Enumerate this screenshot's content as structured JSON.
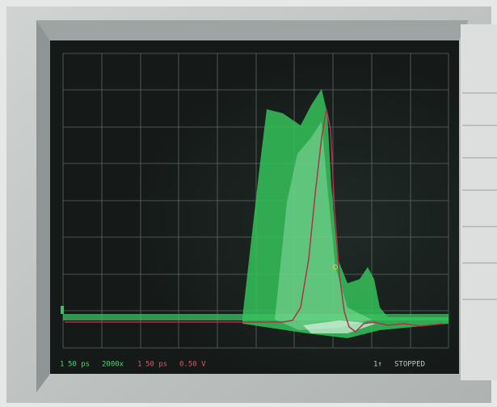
{
  "screen": {
    "status_bar": {
      "channel": "1",
      "timebase": "50 ps",
      "averaging": "2000x",
      "math_channel": "1",
      "math_timebase": "50 ps",
      "math_scale": "0.50 V",
      "trigger": "1↑",
      "state": "STOPPED"
    }
  }
}
